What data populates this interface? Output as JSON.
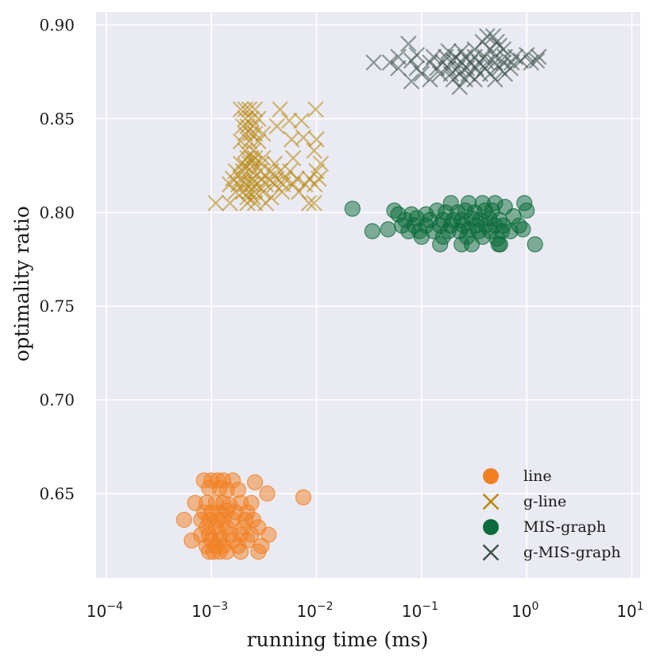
{
  "chart_data": {
    "type": "scatter",
    "xscale": "log",
    "xlim": [
      8e-05,
      12
    ],
    "ylim": [
      0.605,
      0.907
    ],
    "xticks": [
      {
        "value": 0.0001,
        "base": "10",
        "exp": "−4"
      },
      {
        "value": 0.001,
        "base": "10",
        "exp": "−3"
      },
      {
        "value": 0.01,
        "base": "10",
        "exp": "−2"
      },
      {
        "value": 0.1,
        "base": "10",
        "exp": "−1"
      },
      {
        "value": 1,
        "base": "10",
        "exp": "0"
      },
      {
        "value": 10,
        "base": "10",
        "exp": "1"
      }
    ],
    "yticks": [
      {
        "value": 0.65,
        "label": "0.65"
      },
      {
        "value": 0.7,
        "label": "0.70"
      },
      {
        "value": 0.75,
        "label": "0.75"
      },
      {
        "value": 0.8,
        "label": "0.80"
      },
      {
        "value": 0.85,
        "label": "0.85"
      },
      {
        "value": 0.9,
        "label": "0.90"
      }
    ],
    "xlabel": "running time (ms)",
    "ylabel": "optimality ratio",
    "grid": true,
    "legend_position": "lower-right",
    "series": [
      {
        "name": "line",
        "marker": "circle",
        "color": "#F28021",
        "points": [
          [
            0.00085,
            0.657
          ],
          [
            0.001,
            0.657
          ],
          [
            0.00115,
            0.657
          ],
          [
            0.0013,
            0.657
          ],
          [
            0.0016,
            0.657
          ],
          [
            0.0026,
            0.656
          ],
          [
            0.00095,
            0.653
          ],
          [
            0.0012,
            0.653
          ],
          [
            0.0014,
            0.652
          ],
          [
            0.0018,
            0.652
          ],
          [
            0.0034,
            0.65
          ],
          [
            0.0075,
            0.648
          ],
          [
            0.0007,
            0.645
          ],
          [
            0.0009,
            0.645
          ],
          [
            0.0011,
            0.645
          ],
          [
            0.0013,
            0.645
          ],
          [
            0.0015,
            0.644
          ],
          [
            0.0019,
            0.645
          ],
          [
            0.0024,
            0.645
          ],
          [
            0.00085,
            0.64
          ],
          [
            0.001,
            0.64
          ],
          [
            0.0012,
            0.64
          ],
          [
            0.0014,
            0.641
          ],
          [
            0.0017,
            0.64
          ],
          [
            0.0022,
            0.64
          ],
          [
            0.00055,
            0.636
          ],
          [
            0.0008,
            0.636
          ],
          [
            0.00095,
            0.636
          ],
          [
            0.00115,
            0.636
          ],
          [
            0.0013,
            0.636
          ],
          [
            0.0016,
            0.636
          ],
          [
            0.0021,
            0.636
          ],
          [
            0.0025,
            0.636
          ],
          [
            0.0009,
            0.632
          ],
          [
            0.0011,
            0.632
          ],
          [
            0.0014,
            0.632
          ],
          [
            0.002,
            0.632
          ],
          [
            0.0028,
            0.632
          ],
          [
            0.0008,
            0.628
          ],
          [
            0.00095,
            0.628
          ],
          [
            0.0012,
            0.628
          ],
          [
            0.0015,
            0.628
          ],
          [
            0.0019,
            0.628
          ],
          [
            0.0024,
            0.628
          ],
          [
            0.0035,
            0.628
          ],
          [
            0.00065,
            0.625
          ],
          [
            0.001,
            0.625
          ],
          [
            0.0012,
            0.625
          ],
          [
            0.0016,
            0.625
          ],
          [
            0.0022,
            0.625
          ],
          [
            0.0009,
            0.622
          ],
          [
            0.0011,
            0.622
          ],
          [
            0.0013,
            0.622
          ],
          [
            0.0018,
            0.622
          ],
          [
            0.003,
            0.622
          ],
          [
            0.00095,
            0.619
          ],
          [
            0.00105,
            0.619
          ],
          [
            0.0012,
            0.619
          ],
          [
            0.0014,
            0.619
          ],
          [
            0.0019,
            0.619
          ],
          [
            0.0028,
            0.619
          ]
        ]
      },
      {
        "name": "g-line",
        "marker": "x",
        "color": "#B8860B",
        "points": [
          [
            0.0019,
            0.855
          ],
          [
            0.0021,
            0.855
          ],
          [
            0.0023,
            0.855
          ],
          [
            0.0026,
            0.855
          ],
          [
            0.0045,
            0.855
          ],
          [
            0.0098,
            0.855
          ],
          [
            0.0021,
            0.85
          ],
          [
            0.0024,
            0.85
          ],
          [
            0.0028,
            0.85
          ],
          [
            0.0055,
            0.849
          ],
          [
            0.0072,
            0.849
          ],
          [
            0.002,
            0.846
          ],
          [
            0.0022,
            0.846
          ],
          [
            0.0025,
            0.846
          ],
          [
            0.0042,
            0.846
          ],
          [
            0.0021,
            0.842
          ],
          [
            0.0024,
            0.842
          ],
          [
            0.0026,
            0.842
          ],
          [
            0.0031,
            0.842
          ],
          [
            0.0075,
            0.84
          ],
          [
            0.0019,
            0.838
          ],
          [
            0.0023,
            0.838
          ],
          [
            0.0028,
            0.838
          ],
          [
            0.0058,
            0.839
          ],
          [
            0.01,
            0.839
          ],
          [
            0.0021,
            0.833
          ],
          [
            0.0025,
            0.833
          ],
          [
            0.0095,
            0.833
          ],
          [
            0.0022,
            0.829
          ],
          [
            0.0024,
            0.829
          ],
          [
            0.0026,
            0.829
          ],
          [
            0.0031,
            0.829
          ],
          [
            0.006,
            0.829
          ],
          [
            0.0019,
            0.826
          ],
          [
            0.0021,
            0.825
          ],
          [
            0.0023,
            0.826
          ],
          [
            0.0026,
            0.826
          ],
          [
            0.003,
            0.826
          ],
          [
            0.004,
            0.826
          ],
          [
            0.011,
            0.826
          ],
          [
            0.0017,
            0.822
          ],
          [
            0.002,
            0.822
          ],
          [
            0.0024,
            0.822
          ],
          [
            0.0029,
            0.822
          ],
          [
            0.0037,
            0.822
          ],
          [
            0.0045,
            0.822
          ],
          [
            0.0056,
            0.822
          ],
          [
            0.01,
            0.822
          ],
          [
            0.0016,
            0.818
          ],
          [
            0.0019,
            0.818
          ],
          [
            0.0022,
            0.818
          ],
          [
            0.0025,
            0.818
          ],
          [
            0.003,
            0.818
          ],
          [
            0.0035,
            0.818
          ],
          [
            0.0042,
            0.818
          ],
          [
            0.005,
            0.818
          ],
          [
            0.0065,
            0.818
          ],
          [
            0.0086,
            0.818
          ],
          [
            0.0105,
            0.818
          ],
          [
            0.0015,
            0.815
          ],
          [
            0.0018,
            0.815
          ],
          [
            0.0021,
            0.815
          ],
          [
            0.0024,
            0.815
          ],
          [
            0.0027,
            0.815
          ],
          [
            0.0033,
            0.815
          ],
          [
            0.004,
            0.815
          ],
          [
            0.0048,
            0.815
          ],
          [
            0.006,
            0.815
          ],
          [
            0.0078,
            0.815
          ],
          [
            0.0096,
            0.815
          ],
          [
            0.0017,
            0.811
          ],
          [
            0.002,
            0.811
          ],
          [
            0.0023,
            0.811
          ],
          [
            0.0026,
            0.811
          ],
          [
            0.0031,
            0.811
          ],
          [
            0.0047,
            0.811
          ],
          [
            0.0068,
            0.811
          ],
          [
            0.0022,
            0.808
          ],
          [
            0.0025,
            0.808
          ],
          [
            0.0037,
            0.808
          ],
          [
            0.0011,
            0.805
          ],
          [
            0.0015,
            0.805
          ],
          [
            0.0022,
            0.805
          ],
          [
            0.0026,
            0.805
          ],
          [
            0.0033,
            0.805
          ],
          [
            0.0085,
            0.805
          ],
          [
            0.0095,
            0.805
          ]
        ]
      },
      {
        "name": "MIS-graph",
        "marker": "circle",
        "color": "#0B6B3A",
        "points": [
          [
            0.022,
            0.802
          ],
          [
            0.055,
            0.801
          ],
          [
            0.14,
            0.801
          ],
          [
            0.19,
            0.805
          ],
          [
            0.28,
            0.805
          ],
          [
            0.38,
            0.805
          ],
          [
            0.5,
            0.805
          ],
          [
            0.62,
            0.803
          ],
          [
            0.95,
            0.805
          ],
          [
            0.06,
            0.799
          ],
          [
            0.08,
            0.799
          ],
          [
            0.11,
            0.799
          ],
          [
            0.17,
            0.8
          ],
          [
            0.22,
            0.8
          ],
          [
            0.26,
            0.801
          ],
          [
            0.32,
            0.8
          ],
          [
            0.4,
            0.801
          ],
          [
            0.47,
            0.801
          ],
          [
            1.0,
            0.801
          ],
          [
            0.07,
            0.796
          ],
          [
            0.09,
            0.797
          ],
          [
            0.12,
            0.796
          ],
          [
            0.16,
            0.796
          ],
          [
            0.2,
            0.796
          ],
          [
            0.24,
            0.796
          ],
          [
            0.3,
            0.797
          ],
          [
            0.36,
            0.796
          ],
          [
            0.44,
            0.797
          ],
          [
            0.55,
            0.796
          ],
          [
            0.75,
            0.798
          ],
          [
            0.065,
            0.793
          ],
          [
            0.085,
            0.793
          ],
          [
            0.11,
            0.793
          ],
          [
            0.15,
            0.793
          ],
          [
            0.19,
            0.793
          ],
          [
            0.25,
            0.793
          ],
          [
            0.33,
            0.793
          ],
          [
            0.41,
            0.793
          ],
          [
            0.5,
            0.793
          ],
          [
            0.6,
            0.793
          ],
          [
            0.85,
            0.793
          ],
          [
            0.048,
            0.791
          ],
          [
            0.075,
            0.79
          ],
          [
            0.095,
            0.79
          ],
          [
            0.13,
            0.79
          ],
          [
            0.18,
            0.79
          ],
          [
            0.23,
            0.79
          ],
          [
            0.28,
            0.791
          ],
          [
            0.35,
            0.79
          ],
          [
            0.45,
            0.79
          ],
          [
            0.58,
            0.79
          ],
          [
            0.7,
            0.79
          ],
          [
            0.92,
            0.791
          ],
          [
            0.034,
            0.79
          ],
          [
            0.1,
            0.787
          ],
          [
            0.16,
            0.787
          ],
          [
            0.27,
            0.787
          ],
          [
            0.38,
            0.787
          ],
          [
            0.52,
            0.786
          ],
          [
            0.24,
            0.783
          ],
          [
            0.15,
            0.783
          ],
          [
            0.3,
            0.783
          ],
          [
            0.54,
            0.783
          ],
          [
            0.56,
            0.783
          ],
          [
            1.2,
            0.783
          ]
        ]
      },
      {
        "name": "g-MIS-graph",
        "marker": "x",
        "color": "#3B5248",
        "points": [
          [
            0.42,
            0.894
          ],
          [
            0.48,
            0.894
          ],
          [
            0.38,
            0.891
          ],
          [
            0.52,
            0.891
          ],
          [
            0.075,
            0.89
          ],
          [
            0.55,
            0.889
          ],
          [
            0.32,
            0.887
          ],
          [
            0.45,
            0.887
          ],
          [
            0.6,
            0.887
          ],
          [
            0.18,
            0.886
          ],
          [
            0.24,
            0.886
          ],
          [
            0.06,
            0.883
          ],
          [
            0.09,
            0.884
          ],
          [
            0.13,
            0.883
          ],
          [
            0.17,
            0.883
          ],
          [
            0.21,
            0.883
          ],
          [
            0.26,
            0.883
          ],
          [
            0.32,
            0.883
          ],
          [
            0.4,
            0.883
          ],
          [
            0.5,
            0.883
          ],
          [
            0.62,
            0.883
          ],
          [
            0.78,
            0.883
          ],
          [
            1.0,
            0.884
          ],
          [
            1.3,
            0.883
          ],
          [
            0.035,
            0.88
          ],
          [
            0.05,
            0.88
          ],
          [
            0.08,
            0.881
          ],
          [
            0.12,
            0.88
          ],
          [
            0.16,
            0.88
          ],
          [
            0.2,
            0.881
          ],
          [
            0.24,
            0.88
          ],
          [
            0.29,
            0.88
          ],
          [
            0.35,
            0.88
          ],
          [
            0.42,
            0.88
          ],
          [
            0.5,
            0.88
          ],
          [
            0.6,
            0.88
          ],
          [
            0.72,
            0.88
          ],
          [
            0.88,
            0.881
          ],
          [
            1.1,
            0.88
          ],
          [
            1.25,
            0.881
          ],
          [
            0.06,
            0.877
          ],
          [
            0.09,
            0.877
          ],
          [
            0.14,
            0.877
          ],
          [
            0.18,
            0.877
          ],
          [
            0.22,
            0.877
          ],
          [
            0.27,
            0.877
          ],
          [
            0.33,
            0.877
          ],
          [
            0.4,
            0.877
          ],
          [
            0.55,
            0.877
          ],
          [
            0.7,
            0.877
          ],
          [
            0.1,
            0.874
          ],
          [
            0.15,
            0.874
          ],
          [
            0.19,
            0.874
          ],
          [
            0.23,
            0.874
          ],
          [
            0.28,
            0.874
          ],
          [
            0.36,
            0.874
          ],
          [
            0.45,
            0.874
          ],
          [
            0.62,
            0.874
          ],
          [
            0.12,
            0.871
          ],
          [
            0.2,
            0.871
          ],
          [
            0.26,
            0.871
          ],
          [
            0.32,
            0.871
          ],
          [
            0.5,
            0.871
          ],
          [
            0.08,
            0.87
          ],
          [
            0.23,
            0.867
          ]
        ]
      }
    ]
  }
}
